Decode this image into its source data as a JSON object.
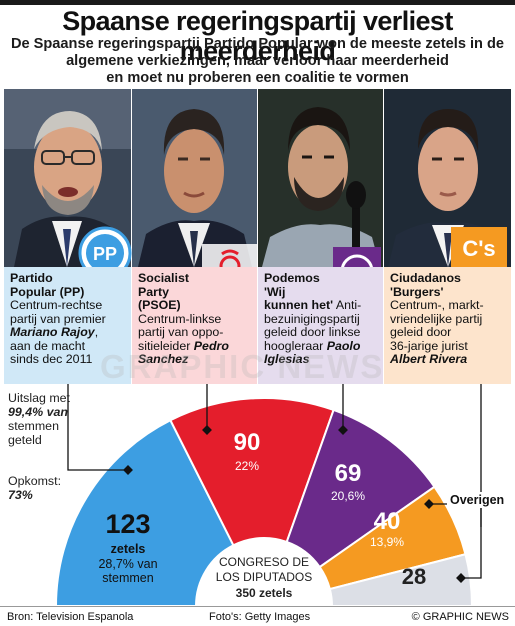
{
  "header": {
    "title": "Spaanse regeringspartij verliest meerderheid",
    "subtitle_lines": [
      "De Spaanse regeringspartij Partido Popular won de meeste zetels in de",
      "algemene verkiezingen, maar verloor haar meerderheid",
      "en moet nu proberen een coalitie te vormen"
    ]
  },
  "parties": [
    {
      "name_lines": [
        "Partido",
        "Popular (PP)"
      ],
      "desc_lines": [
        "Centrum-rechtse",
        "partij van premier"
      ],
      "leader": "Mariano Rajoy",
      "desc_after": [
        "aan de macht",
        "sinds dec 2011"
      ],
      "logo_text": "PP",
      "panel_color": "#d0e8f7",
      "seat_color": "#3d9ee2"
    },
    {
      "name_lines": [
        "Socialist",
        "Party",
        "(PSOE)"
      ],
      "desc_lines": [
        "Centrum-linkse",
        "partij van oppo-",
        "sitieleider"
      ],
      "leader": "Pedro Sanchez",
      "desc_after": [],
      "logo_text": "",
      "panel_color": "#fbd7d9",
      "seat_color": "#e41e2c"
    },
    {
      "name_lines": [
        "Podemos",
        "'Wij",
        "kunnen het'"
      ],
      "desc_lines": [
        "Anti-",
        "bezuinigingspartij",
        "geleid door linkse",
        "hoogleraar"
      ],
      "leader": "Paolo Iglesias",
      "desc_after": [],
      "logo_text": "",
      "panel_color": "#e5dcee",
      "seat_color": "#6a2a8a"
    },
    {
      "name_lines": [
        "Ciudadanos",
        "'Burgers'"
      ],
      "desc_lines": [
        "Centrum-, markt-",
        "vriendelijke partij",
        "geleid door",
        "36-jarige jurist"
      ],
      "leader": "Albert Rivera",
      "desc_after": [],
      "logo_text": "C's",
      "panel_color": "#fde4cc",
      "seat_color": "#f59a21"
    }
  ],
  "stats": {
    "count_label_lines": [
      "Uitslag met",
      "99,4% van",
      "stemmen",
      "geteld"
    ],
    "count_value": "99,4%",
    "turnout_label": "Opkomst:",
    "turnout_value": "73%"
  },
  "chart_data": {
    "type": "pie",
    "title": "CONGRESO DE LOS DIPUTADOS",
    "total_label": "350 zetels",
    "total": 350,
    "slices": [
      {
        "name": "Partido Popular (PP)",
        "seats": 123,
        "seats_label": "123",
        "unit": "zetels",
        "pct_label": "28,7% van stemmen",
        "pct": 28.7,
        "color": "#3d9ee2"
      },
      {
        "name": "Socialist Party (PSOE)",
        "seats": 90,
        "seats_label": "90",
        "pct_label": "22%",
        "pct": 22.0,
        "color": "#e41e2c"
      },
      {
        "name": "Podemos",
        "seats": 69,
        "seats_label": "69",
        "pct_label": "20,6%",
        "pct": 20.6,
        "color": "#6a2a8a"
      },
      {
        "name": "Ciudadanos",
        "seats": 40,
        "seats_label": "40",
        "pct_label": "13,9%",
        "pct": 13.9,
        "color": "#f59a21"
      },
      {
        "name": "Overigen",
        "seats": 28,
        "seats_label": "28",
        "pct_label": "",
        "color": "#dcdfe6"
      }
    ],
    "others_label": "Overigen"
  },
  "footer": {
    "source": "Bron: Television Espanola",
    "photos": "Foto's: Getty Images",
    "copyright": "© GRAPHIC NEWS"
  },
  "watermark": "GRAPHIC NEWS"
}
